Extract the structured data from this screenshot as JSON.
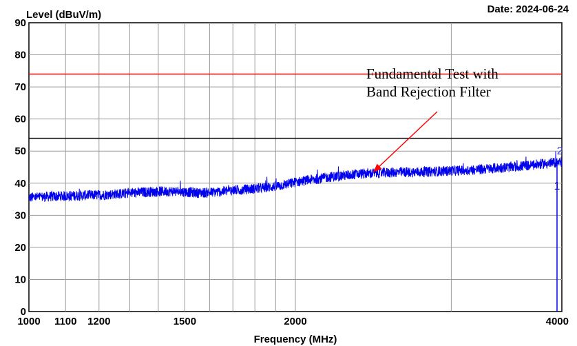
{
  "chart_data": {
    "type": "line",
    "title": "",
    "ylabel": "Level (dBuV/m)",
    "xlabel": "Frequency (MHz)",
    "date_label": "Date: 2024-06-24",
    "x_scale": "log",
    "xlim": [
      1000,
      4000
    ],
    "ylim": [
      0,
      90
    ],
    "grid": true,
    "y_ticks": [
      0,
      10,
      20,
      30,
      40,
      50,
      60,
      70,
      80,
      90
    ],
    "x_ticks": [
      1000,
      1100,
      1200,
      1500,
      2000,
      4000
    ],
    "x_tick_labels": [
      "1000",
      "1100",
      "1200",
      "1500",
      "2000",
      "4000"
    ],
    "x_gridlines": [
      1000,
      1100,
      1200,
      1300,
      1400,
      1500,
      1600,
      1700,
      1800,
      1900,
      2000,
      3000,
      4000
    ],
    "limit_lines": [
      {
        "value": 74,
        "color": "#ff0000"
      },
      {
        "value": 54,
        "color": "#000000"
      }
    ],
    "series": [
      {
        "color": "#0000ee",
        "x": [
          1000,
          1050,
          1100,
          1150,
          1200,
          1250,
          1300,
          1350,
          1400,
          1450,
          1500,
          1550,
          1600,
          1650,
          1700,
          1750,
          1800,
          1850,
          1900,
          1950,
          2000,
          2100,
          2200,
          2300,
          2400,
          2500,
          2600,
          2700,
          2800,
          2900,
          3000,
          3100,
          3200,
          3300,
          3400,
          3500,
          3600,
          3700,
          3800,
          3900,
          4000
        ],
        "y": [
          35.5,
          35.8,
          36.0,
          36.2,
          36.3,
          36.6,
          36.9,
          37.2,
          37.4,
          37.5,
          37.3,
          37.0,
          37.1,
          37.4,
          37.8,
          38.0,
          38.3,
          38.6,
          39.0,
          39.6,
          40.3,
          41.2,
          42.0,
          42.6,
          43.0,
          43.2,
          43.4,
          43.4,
          43.5,
          43.7,
          43.9,
          44.0,
          44.2,
          44.5,
          44.8,
          45.0,
          45.3,
          45.6,
          46.0,
          46.3,
          46.6
        ]
      }
    ],
    "markers": [
      {
        "label": "1",
        "x": 3950,
        "y": 38
      },
      {
        "label": "2",
        "x": 3980,
        "y": 49
      }
    ],
    "marker_line": {
      "x": 3950,
      "from": 46,
      "to": 0
    },
    "annotation": {
      "lines": [
        "Fundamental Test with",
        "Band Rejection Filter"
      ],
      "arrow_target": {
        "x": 2450,
        "y": 43.5
      }
    }
  }
}
